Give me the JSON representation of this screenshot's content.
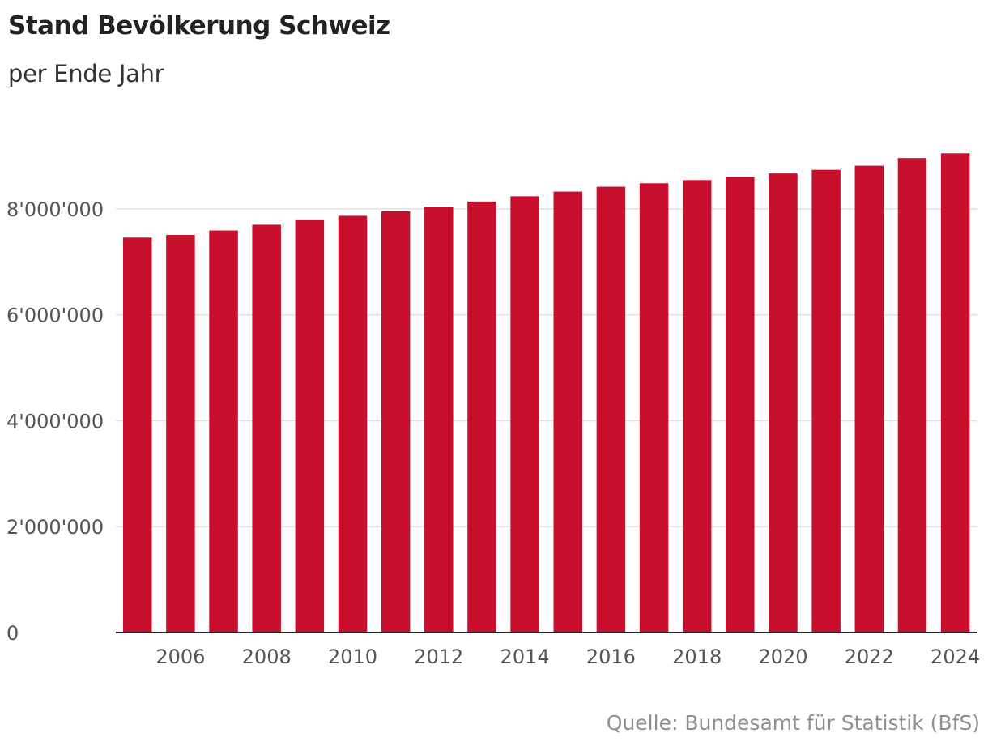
{
  "header": {
    "title": "Stand Bevölkerung Schweiz",
    "subtitle": "per Ende Jahr"
  },
  "footer": {
    "source": "Quelle: Bundesamt für Statistik (BfS)"
  },
  "colors": {
    "bar": "#c8102e",
    "grid": "#e0e0e0",
    "axis": "#222222",
    "tick_text": "#555555",
    "source_text": "#8f8f8f"
  },
  "chart_data": {
    "type": "bar",
    "title": "Stand Bevölkerung Schweiz",
    "subtitle": "per Ende Jahr",
    "xlabel": "",
    "ylabel": "",
    "categories": [
      2005,
      2006,
      2007,
      2008,
      2009,
      2010,
      2011,
      2012,
      2013,
      2014,
      2015,
      2016,
      2017,
      2018,
      2019,
      2020,
      2021,
      2022,
      2023,
      2024
    ],
    "values": [
      7459000,
      7509000,
      7593000,
      7702000,
      7786000,
      7870000,
      7955000,
      8039000,
      8139000,
      8238000,
      8327000,
      8419000,
      8484000,
      8544000,
      8606000,
      8670000,
      8738000,
      8815000,
      8960000,
      9050000
    ],
    "x_tick_labels": [
      "2006",
      "2008",
      "2010",
      "2012",
      "2014",
      "2016",
      "2018",
      "2020",
      "2022",
      "2024"
    ],
    "y_ticks": [
      0,
      2000000,
      4000000,
      6000000,
      8000000
    ],
    "y_tick_labels": [
      "0",
      "2'000'000",
      "4'000'000",
      "6'000'000",
      "8'000'000"
    ],
    "ylim": [
      0,
      9100000
    ],
    "grid": true,
    "legend": "none"
  }
}
